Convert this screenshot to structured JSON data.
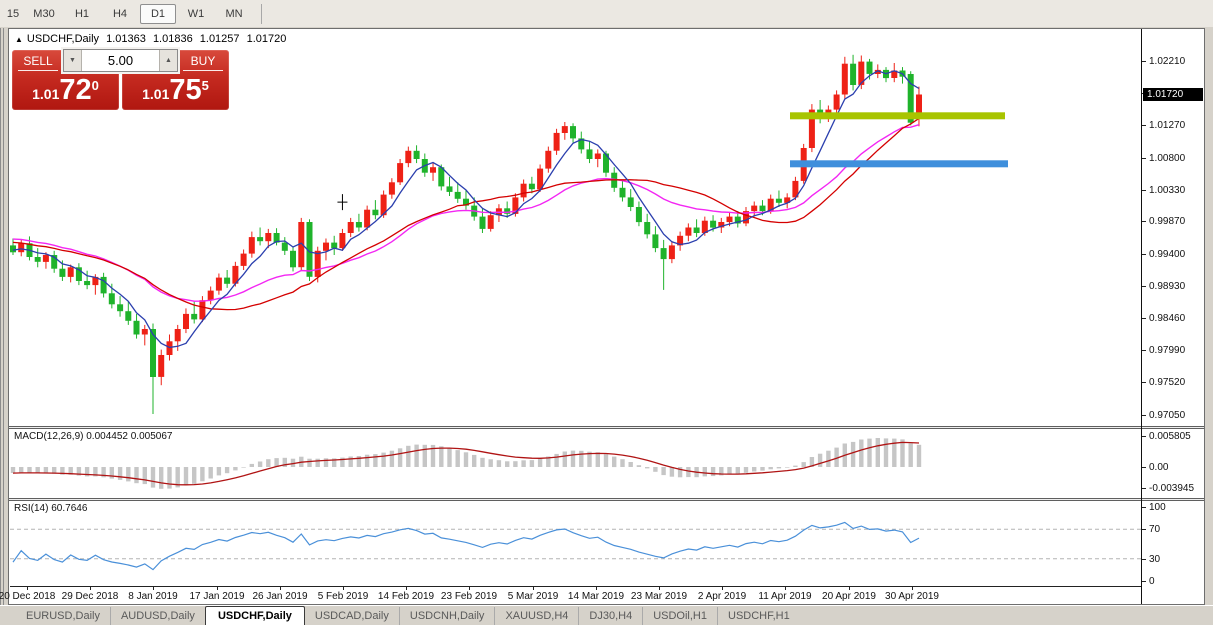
{
  "toolbar": {
    "timeframes": [
      {
        "label": "15",
        "active": false
      },
      {
        "label": "M30",
        "active": false
      },
      {
        "label": "H1",
        "active": false
      },
      {
        "label": "H4",
        "active": false
      },
      {
        "label": "D1",
        "active": true
      },
      {
        "label": "W1",
        "active": false
      },
      {
        "label": "MN",
        "active": false
      }
    ]
  },
  "icons": {
    "collapse": "▲",
    "spinner_down": "▼",
    "spinner_up": "▲"
  },
  "header": {
    "symbol": "USDCHF,Daily",
    "open": "1.01363",
    "high": "1.01836",
    "low": "1.01257",
    "close": "1.01720"
  },
  "trade_panel": {
    "sell_label": "SELL",
    "buy_label": "BUY",
    "volume": "5.00",
    "sell_price_prefix": "1.01",
    "sell_price_main": "72",
    "sell_price_sup": "0",
    "buy_price_prefix": "1.01",
    "buy_price_main": "75",
    "buy_price_sup": "5"
  },
  "price_axis": {
    "ticks": [
      "1.02210",
      "1.01740",
      "1.01270",
      "1.00800",
      "1.00330",
      "0.99870",
      "0.99400",
      "0.98930",
      "0.98460",
      "0.97990",
      "0.97520",
      "0.97050"
    ],
    "current_price": "1.01720"
  },
  "date_axis": [
    "20 Dec 2018",
    "29 Dec 2018",
    "8 Jan 2019",
    "17 Jan 2019",
    "26 Jan 2019",
    "5 Feb 2019",
    "14 Feb 2019",
    "23 Feb 2019",
    "5 Mar 2019",
    "14 Mar 2019",
    "23 Mar 2019",
    "2 Apr 2019",
    "11 Apr 2019",
    "20 Apr 2019",
    "30 Apr 2019"
  ],
  "macd_panel": {
    "label": "MACD(12,26,9)",
    "values": "0.004452 0.005067",
    "axis": [
      {
        "v": 0.005805,
        "label": "0.005805"
      },
      {
        "v": 0,
        "label": "0.00"
      },
      {
        "v": -0.003945,
        "label": "-0.003945"
      }
    ]
  },
  "rsi_panel": {
    "label": "RSI(14)",
    "value": "60.7646",
    "axis": [
      {
        "v": 100,
        "label": "100"
      },
      {
        "v": 70,
        "label": "70"
      },
      {
        "v": 30,
        "label": "30"
      },
      {
        "v": 0,
        "label": "0"
      }
    ],
    "levels": [
      70,
      30
    ]
  },
  "tabs": [
    {
      "label": "EURUSD,Daily",
      "active": false
    },
    {
      "label": "AUDUSD,Daily",
      "active": false
    },
    {
      "label": "USDCHF,Daily",
      "active": true
    },
    {
      "label": "USDCAD,Daily",
      "active": false
    },
    {
      "label": "USDCNH,Daily",
      "active": false
    },
    {
      "label": "XAUUSD,H4",
      "active": false
    },
    {
      "label": "DJ30,H4",
      "active": false
    },
    {
      "label": "USDOil,H1",
      "active": false
    },
    {
      "label": "USDCHF,H1",
      "active": false
    }
  ],
  "colors": {
    "bull": "#ee2116",
    "bear": "#1fb32b",
    "ma_fast": "#2b3fae",
    "ma_mid": "#d40000",
    "ma_slow": "#f327f3",
    "macd_hist": "#c6c6c6",
    "macd_signal": "#b01414",
    "rsi_line": "#4a90d9",
    "rsi_level": "#b4b4b4",
    "hline_olive": "#a8c400",
    "hline_blue": "#3f8fdc",
    "marker": "#000000"
  },
  "chart_data": {
    "type": "candlestick",
    "symbol": "USDCHF",
    "timeframe": "Daily",
    "title": "USDCHF,Daily",
    "ylim": [
      0.96885,
      1.02676
    ],
    "x_dates_span": [
      "20 Dec 2018",
      "30 Apr 2019"
    ],
    "ohlc": [
      [
        0.9952,
        0.9962,
        0.9938,
        0.9942
      ],
      [
        0.9942,
        0.996,
        0.9936,
        0.9955
      ],
      [
        0.9955,
        0.9965,
        0.993,
        0.9935
      ],
      [
        0.9935,
        0.9948,
        0.992,
        0.9928
      ],
      [
        0.9928,
        0.9942,
        0.9918,
        0.9938
      ],
      [
        0.9938,
        0.9944,
        0.9912,
        0.9918
      ],
      [
        0.9918,
        0.993,
        0.99,
        0.9906
      ],
      [
        0.9906,
        0.9924,
        0.9898,
        0.992
      ],
      [
        0.992,
        0.9926,
        0.9894,
        0.99
      ],
      [
        0.99,
        0.9915,
        0.9888,
        0.9894
      ],
      [
        0.9894,
        0.991,
        0.988,
        0.9906
      ],
      [
        0.9906,
        0.9912,
        0.9876,
        0.9882
      ],
      [
        0.9882,
        0.9896,
        0.986,
        0.9866
      ],
      [
        0.9866,
        0.9878,
        0.9848,
        0.9856
      ],
      [
        0.9856,
        0.987,
        0.9836,
        0.9842
      ],
      [
        0.9842,
        0.9852,
        0.9816,
        0.9822
      ],
      [
        0.9822,
        0.9836,
        0.9806,
        0.983
      ],
      [
        0.983,
        0.9838,
        0.9706,
        0.976
      ],
      [
        0.976,
        0.98,
        0.9748,
        0.9792
      ],
      [
        0.9792,
        0.9822,
        0.9784,
        0.9812
      ],
      [
        0.9812,
        0.9836,
        0.9798,
        0.983
      ],
      [
        0.983,
        0.986,
        0.9824,
        0.9852
      ],
      [
        0.9852,
        0.987,
        0.9838,
        0.9844
      ],
      [
        0.9844,
        0.9878,
        0.984,
        0.9872
      ],
      [
        0.9872,
        0.9892,
        0.9866,
        0.9886
      ],
      [
        0.9886,
        0.9911,
        0.988,
        0.9905
      ],
      [
        0.9905,
        0.9916,
        0.989,
        0.9896
      ],
      [
        0.9896,
        0.9928,
        0.9892,
        0.9922
      ],
      [
        0.9922,
        0.9946,
        0.9916,
        0.994
      ],
      [
        0.994,
        0.9972,
        0.9934,
        0.9964
      ],
      [
        0.9964,
        0.9978,
        0.9952,
        0.9958
      ],
      [
        0.9958,
        0.9976,
        0.9948,
        0.997
      ],
      [
        0.997,
        0.9977,
        0.9952,
        0.9956
      ],
      [
        0.9956,
        0.9964,
        0.9938,
        0.9944
      ],
      [
        0.9944,
        0.995,
        0.9914,
        0.992
      ],
      [
        0.992,
        0.9992,
        0.9916,
        0.9986
      ],
      [
        0.9986,
        0.999,
        0.99,
        0.9906
      ],
      [
        0.9906,
        0.995,
        0.9898,
        0.9944
      ],
      [
        0.9944,
        0.9962,
        0.993,
        0.9956
      ],
      [
        0.9956,
        0.9966,
        0.9938,
        0.9948
      ],
      [
        0.9948,
        0.9976,
        0.9944,
        0.997
      ],
      [
        0.997,
        0.9992,
        0.9964,
        0.9986
      ],
      [
        0.9986,
        0.9998,
        0.9972,
        0.9978
      ],
      [
        0.9978,
        1.001,
        0.9974,
        1.0004
      ],
      [
        1.0004,
        1.0018,
        0.999,
        0.9996
      ],
      [
        0.9996,
        1.0032,
        0.9992,
        1.0026
      ],
      [
        1.0026,
        1.005,
        1.002,
        1.0044
      ],
      [
        1.0044,
        1.0078,
        1.004,
        1.0072
      ],
      [
        1.0072,
        1.0096,
        1.0066,
        1.009
      ],
      [
        1.009,
        1.0098,
        1.0072,
        1.0078
      ],
      [
        1.0078,
        1.0086,
        1.0052,
        1.0058
      ],
      [
        1.0058,
        1.0072,
        1.0046,
        1.0066
      ],
      [
        1.0066,
        1.007,
        1.0032,
        1.0038
      ],
      [
        1.0038,
        1.0052,
        1.0024,
        1.003
      ],
      [
        1.003,
        1.0044,
        1.0014,
        1.002
      ],
      [
        1.002,
        1.0032,
        1.0004,
        1.001
      ],
      [
        1.001,
        1.0022,
        0.9988,
        0.9994
      ],
      [
        0.9994,
        1.0006,
        0.997,
        0.9976
      ],
      [
        0.9976,
        1.0002,
        0.9972,
        0.9996
      ],
      [
        0.9996,
        1.0012,
        0.9986,
        1.0006
      ],
      [
        1.0006,
        1.0016,
        0.9992,
        0.9998
      ],
      [
        0.9998,
        1.0028,
        0.9994,
        1.0022
      ],
      [
        1.0022,
        1.0048,
        1.0016,
        1.0042
      ],
      [
        1.0042,
        1.0052,
        1.0028,
        1.0034
      ],
      [
        1.0034,
        1.007,
        1.003,
        1.0064
      ],
      [
        1.0064,
        1.0096,
        1.0058,
        1.009
      ],
      [
        1.009,
        1.0122,
        1.0084,
        1.0116
      ],
      [
        1.0116,
        1.0132,
        1.0106,
        1.0126
      ],
      [
        1.0126,
        1.013,
        1.0102,
        1.0108
      ],
      [
        1.0108,
        1.0118,
        1.0086,
        1.0092
      ],
      [
        1.0092,
        1.0104,
        1.0072,
        1.0078
      ],
      [
        1.0078,
        1.0092,
        1.0066,
        1.0086
      ],
      [
        1.0086,
        1.009,
        1.0052,
        1.0058
      ],
      [
        1.0058,
        1.0066,
        1.003,
        1.0036
      ],
      [
        1.0036,
        1.0048,
        1.0016,
        1.0022
      ],
      [
        1.0022,
        1.0034,
        1.0002,
        1.0008
      ],
      [
        1.0008,
        1.0016,
        0.998,
        0.9986
      ],
      [
        0.9986,
        0.9998,
        0.9962,
        0.9968
      ],
      [
        0.9968,
        0.998,
        0.9942,
        0.9948
      ],
      [
        0.9948,
        0.996,
        0.9887,
        0.9932
      ],
      [
        0.9932,
        0.9958,
        0.9926,
        0.9952
      ],
      [
        0.9952,
        0.9972,
        0.9944,
        0.9966
      ],
      [
        0.9966,
        0.9984,
        0.9958,
        0.9978
      ],
      [
        0.9978,
        0.999,
        0.9964,
        0.997
      ],
      [
        0.997,
        0.9994,
        0.9966,
        0.9988
      ],
      [
        0.9988,
        0.9996,
        0.9972,
        0.9978
      ],
      [
        0.9978,
        0.9992,
        0.997,
        0.9986
      ],
      [
        0.9986,
        1.0,
        0.998,
        0.9994
      ],
      [
        0.9994,
        1.0002,
        0.9978,
        0.9984
      ],
      [
        0.9984,
        1.0008,
        0.998,
        1.0002
      ],
      [
        1.0002,
        1.0016,
        0.9994,
        1.001
      ],
      [
        1.001,
        1.0018,
        0.9996,
        1.0002
      ],
      [
        1.0002,
        1.0026,
        0.9998,
        1.002
      ],
      [
        1.002,
        1.0032,
        1.0008,
        1.0014
      ],
      [
        1.0014,
        1.0028,
        1.0006,
        1.0022
      ],
      [
        1.0022,
        1.0052,
        1.0018,
        1.0046
      ],
      [
        1.0046,
        1.01,
        1.0042,
        1.0094
      ],
      [
        1.0094,
        1.0158,
        1.0088,
        1.015
      ],
      [
        1.015,
        1.0164,
        1.013,
        1.0138
      ],
      [
        1.0138,
        1.0156,
        1.0132,
        1.015
      ],
      [
        1.015,
        1.0178,
        1.0144,
        1.0172
      ],
      [
        1.0172,
        1.0227,
        1.0166,
        1.0217
      ],
      [
        1.0217,
        1.023,
        1.0178,
        1.0186
      ],
      [
        1.0186,
        1.0229,
        1.018,
        1.022
      ],
      [
        1.022,
        1.0224,
        1.0194,
        1.0202
      ],
      [
        1.0202,
        1.0216,
        1.0196,
        1.0208
      ],
      [
        1.0208,
        1.0212,
        1.019,
        1.0196
      ],
      [
        1.0196,
        1.0218,
        1.019,
        1.0207
      ],
      [
        1.0207,
        1.0212,
        1.0188,
        1.0198
      ],
      [
        1.0202,
        1.0206,
        1.0127,
        1.0131
      ],
      [
        1.01363,
        1.01836,
        1.01257,
        1.0172
      ]
    ],
    "prehistory_closes": [
      1.0005,
      1.0002,
      0.9998,
      1.0002,
      0.9996,
      0.999,
      0.9992,
      0.9986,
      0.998,
      0.9982,
      0.9976,
      0.9972,
      0.9975,
      0.997,
      0.9966,
      0.9968,
      0.9962,
      0.9958,
      0.996,
      0.9956,
      0.9958,
      0.9952,
      0.9955,
      0.995,
      0.9948,
      0.9952,
      0.9946,
      0.9944,
      0.9948,
      0.9945
    ],
    "indicators": {
      "ma_fast": {
        "type": "sma",
        "period": 5
      },
      "ma_mid": {
        "type": "sma",
        "period": 20
      },
      "ma_slow": {
        "type": "ema",
        "period": 25
      },
      "macd": {
        "fast": 12,
        "slow": 26,
        "signal": 9,
        "ylim": [
          -0.0058,
          0.00711
        ]
      },
      "rsi": {
        "period": 14
      }
    },
    "objects": {
      "hlines": [
        {
          "price": 1.0141,
          "color_key": "hline_olive",
          "i1": 94.3,
          "i2": 120.4,
          "thickness": 7
        },
        {
          "price": 1.0071,
          "color_key": "hline_blue",
          "i1": 94.3,
          "i2": 120.8,
          "thickness": 7
        }
      ],
      "marker": {
        "index": 40,
        "price": 1.0015
      }
    }
  }
}
